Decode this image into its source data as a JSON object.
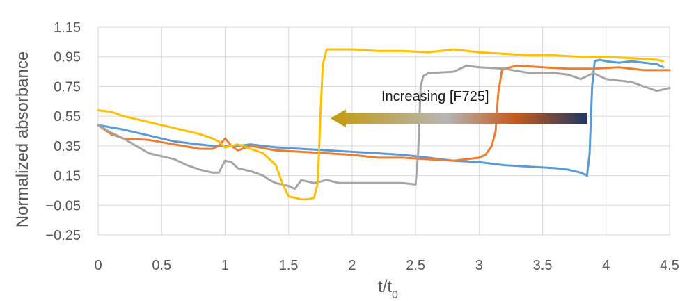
{
  "chart_data": {
    "type": "line",
    "xlabel": "t/t",
    "xlabel_sub": "0",
    "ylabel": "Normalized absorbance",
    "xlim": [
      0,
      4.5
    ],
    "ylim": [
      -0.25,
      1.15
    ],
    "xticks": [
      0,
      0.5,
      1,
      1.5,
      2,
      2.5,
      3,
      3.5,
      4,
      4.5
    ],
    "xtick_labels": [
      "0",
      "0.5",
      "1",
      "1.5",
      "2",
      "2.5",
      "3",
      "3.5",
      "4",
      "4.5"
    ],
    "yticks": [
      -0.25,
      -0.05,
      0.15,
      0.35,
      0.55,
      0.75,
      0.95,
      1.15
    ],
    "ytick_labels": [
      "−0.25",
      "−0.05",
      "0.15",
      "0.35",
      "0.55",
      "0.75",
      "0.95",
      "1.15"
    ],
    "grid": true,
    "legend": "none",
    "annotation": {
      "text": "Increasing [F725]",
      "arrow_from": [
        3.85,
        0.535
      ],
      "arrow_to": [
        1.83,
        0.535
      ],
      "gradient_colors": [
        "#C49A0C",
        "#B5B5B5",
        "#C55A1A",
        "#203864"
      ]
    },
    "series": [
      {
        "color": "#5B9BD5",
        "x": [
          0,
          0.2,
          0.4,
          0.6,
          0.8,
          0.9,
          1.0,
          1.1,
          1.2,
          1.4,
          1.6,
          1.8,
          2.0,
          2.2,
          2.4,
          2.6,
          2.8,
          3.0,
          3.2,
          3.4,
          3.6,
          3.7,
          3.8,
          3.85,
          3.87,
          3.89,
          3.91,
          3.95,
          4.0,
          4.1,
          4.2,
          4.3,
          4.4,
          4.45
        ],
        "y": [
          0.49,
          0.46,
          0.42,
          0.38,
          0.36,
          0.35,
          0.35,
          0.35,
          0.36,
          0.34,
          0.33,
          0.32,
          0.31,
          0.3,
          0.29,
          0.27,
          0.25,
          0.24,
          0.22,
          0.21,
          0.2,
          0.19,
          0.17,
          0.15,
          0.3,
          0.75,
          0.92,
          0.93,
          0.92,
          0.91,
          0.92,
          0.91,
          0.9,
          0.88
        ]
      },
      {
        "color": "#ED7D31",
        "x": [
          0,
          0.1,
          0.2,
          0.4,
          0.6,
          0.8,
          0.9,
          0.95,
          1.0,
          1.05,
          1.1,
          1.2,
          1.4,
          1.6,
          1.8,
          2.0,
          2.2,
          2.4,
          2.6,
          2.8,
          3.0,
          3.05,
          3.1,
          3.13,
          3.15,
          3.18,
          3.2,
          3.3,
          3.5,
          3.7,
          3.9,
          4.1,
          4.3,
          4.5
        ],
        "y": [
          0.49,
          0.43,
          0.4,
          0.39,
          0.36,
          0.33,
          0.33,
          0.35,
          0.4,
          0.35,
          0.32,
          0.35,
          0.32,
          0.31,
          0.3,
          0.29,
          0.27,
          0.27,
          0.26,
          0.25,
          0.27,
          0.29,
          0.35,
          0.45,
          0.7,
          0.86,
          0.87,
          0.89,
          0.88,
          0.87,
          0.87,
          0.88,
          0.86,
          0.86
        ]
      },
      {
        "color": "#A5A5A5",
        "x": [
          0,
          0.1,
          0.2,
          0.3,
          0.4,
          0.5,
          0.6,
          0.7,
          0.8,
          0.9,
          0.95,
          1.0,
          1.05,
          1.1,
          1.2,
          1.3,
          1.35,
          1.4,
          1.5,
          1.55,
          1.6,
          1.7,
          1.8,
          1.9,
          2.0,
          2.2,
          2.4,
          2.5,
          2.52,
          2.54,
          2.56,
          2.6,
          2.8,
          2.9,
          3.0,
          3.2,
          3.4,
          3.6,
          3.7,
          3.8,
          3.9,
          4.0,
          4.1,
          4.2,
          4.3,
          4.4,
          4.5
        ],
        "y": [
          0.49,
          0.44,
          0.4,
          0.35,
          0.3,
          0.28,
          0.26,
          0.22,
          0.19,
          0.17,
          0.17,
          0.25,
          0.24,
          0.2,
          0.18,
          0.15,
          0.12,
          0.1,
          0.08,
          0.06,
          0.12,
          0.1,
          0.12,
          0.1,
          0.1,
          0.1,
          0.1,
          0.09,
          0.3,
          0.75,
          0.82,
          0.84,
          0.85,
          0.89,
          0.88,
          0.87,
          0.84,
          0.84,
          0.83,
          0.8,
          0.84,
          0.8,
          0.79,
          0.78,
          0.75,
          0.72,
          0.74
        ]
      },
      {
        "color": "#FFC000",
        "x": [
          0,
          0.1,
          0.2,
          0.3,
          0.4,
          0.6,
          0.8,
          0.9,
          0.95,
          1.0,
          1.05,
          1.1,
          1.2,
          1.3,
          1.4,
          1.45,
          1.5,
          1.55,
          1.6,
          1.65,
          1.7,
          1.73,
          1.75,
          1.77,
          1.8,
          2.0,
          2.2,
          2.4,
          2.6,
          2.8,
          3.0,
          3.2,
          3.4,
          3.6,
          3.8,
          4.0,
          4.2,
          4.4,
          4.45
        ],
        "y": [
          0.59,
          0.58,
          0.55,
          0.53,
          0.51,
          0.47,
          0.43,
          0.4,
          0.38,
          0.34,
          0.35,
          0.36,
          0.33,
          0.3,
          0.22,
          0.1,
          0.01,
          0.0,
          -0.01,
          -0.01,
          0.0,
          0.1,
          0.55,
          0.9,
          1.0,
          1.0,
          0.99,
          0.99,
          0.98,
          1.0,
          0.98,
          0.97,
          0.96,
          0.96,
          0.95,
          0.95,
          0.94,
          0.93,
          0.92
        ]
      }
    ]
  }
}
